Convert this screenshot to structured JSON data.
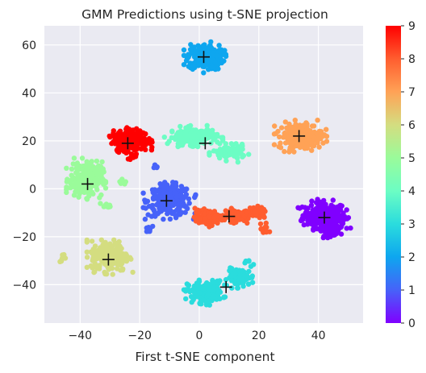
{
  "chart_data": {
    "type": "scatter",
    "title": "GMM Predictions using t-SNE projection",
    "xlabel": "First t-SNE component",
    "ylabel": "",
    "xlim": [
      -52,
      55
    ],
    "ylim": [
      -56,
      68
    ],
    "xticks": [
      -40,
      -20,
      0,
      20,
      40
    ],
    "yticks": [
      -40,
      -20,
      0,
      20,
      40,
      60
    ],
    "grid": true,
    "background": "#EAEAF2",
    "colormap": "rainbow",
    "colorbar": {
      "min": 0,
      "max": 9,
      "ticks": [
        0,
        1,
        2,
        3,
        4,
        5,
        6,
        7,
        8,
        9
      ]
    },
    "clusters": [
      {
        "label": 0,
        "color": "#8000ff",
        "blobs": [
          {
            "x": 42,
            "y": -11,
            "rx": 8,
            "ry": 6,
            "n": 220
          },
          {
            "x": 44,
            "y": -16,
            "rx": 5,
            "ry": 4,
            "n": 90
          }
        ]
      },
      {
        "label": 1,
        "color": "#4662f9",
        "blobs": [
          {
            "x": -10,
            "y": -5,
            "rx": 8,
            "ry": 7,
            "n": 260
          },
          {
            "x": -17,
            "y": -17,
            "rx": 1.5,
            "ry": 1.5,
            "n": 10
          },
          {
            "x": -15,
            "y": 9,
            "rx": 1.3,
            "ry": 1.3,
            "n": 6
          }
        ]
      },
      {
        "label": 2,
        "color": "#0ea6ef",
        "blobs": [
          {
            "x": 2,
            "y": 55,
            "rx": 6.5,
            "ry": 6,
            "n": 240
          }
        ]
      },
      {
        "label": 3,
        "color": "#2adcdd",
        "blobs": [
          {
            "x": 2,
            "y": -43,
            "rx": 6.5,
            "ry": 5,
            "n": 170
          },
          {
            "x": 14,
            "y": -37,
            "rx": 5,
            "ry": 4,
            "n": 80
          },
          {
            "x": 17,
            "y": -31,
            "rx": 1.5,
            "ry": 1.5,
            "n": 6
          }
        ]
      },
      {
        "label": 4,
        "color": "#6cfdc4",
        "blobs": [
          {
            "x": -2,
            "y": 22,
            "rx": 9,
            "ry": 4,
            "n": 170
          },
          {
            "x": 10,
            "y": 15,
            "rx": 6,
            "ry": 3.5,
            "n": 90
          }
        ]
      },
      {
        "label": 5,
        "color": "#9afb9a",
        "blobs": [
          {
            "x": -38,
            "y": 4,
            "rx": 6,
            "ry": 8,
            "n": 230
          },
          {
            "x": -31,
            "y": -7,
            "rx": 2,
            "ry": 1.2,
            "n": 8
          },
          {
            "x": -26,
            "y": 3,
            "rx": 1.4,
            "ry": 1.6,
            "n": 8
          }
        ]
      },
      {
        "label": 6,
        "color": "#d4dd80",
        "blobs": [
          {
            "x": -30,
            "y": -28,
            "rx": 7,
            "ry": 7,
            "n": 230
          },
          {
            "x": -45.5,
            "y": -29,
            "rx": 1.6,
            "ry": 2,
            "n": 12
          }
        ]
      },
      {
        "label": 7,
        "color": "#ffa256",
        "blobs": [
          {
            "x": 34,
            "y": 22,
            "rx": 8,
            "ry": 6,
            "n": 240
          }
        ]
      },
      {
        "label": 8,
        "color": "#ff5d2f",
        "blobs": [
          {
            "x": 3,
            "y": -12,
            "rx": 5,
            "ry": 3.5,
            "n": 110
          },
          {
            "x": 12,
            "y": -11,
            "rx": 4,
            "ry": 3,
            "n": 80
          },
          {
            "x": 19,
            "y": -10,
            "rx": 4,
            "ry": 2.5,
            "n": 60
          },
          {
            "x": 22,
            "y": -17,
            "rx": 1.5,
            "ry": 2.5,
            "n": 14
          }
        ]
      },
      {
        "label": 9,
        "color": "#ff0000",
        "blobs": [
          {
            "x": -23,
            "y": 20,
            "rx": 6.5,
            "ry": 5,
            "n": 240
          },
          {
            "x": -23,
            "y": 13,
            "rx": 1.5,
            "ry": 1.2,
            "n": 6
          }
        ]
      }
    ],
    "centers": [
      {
        "label": 0,
        "x": 42,
        "y": -12
      },
      {
        "label": 1,
        "x": -11,
        "y": -5
      },
      {
        "label": 2,
        "x": 1.5,
        "y": 55
      },
      {
        "label": 3,
        "x": 9,
        "y": -41
      },
      {
        "label": 4,
        "x": 2,
        "y": 19
      },
      {
        "label": 5,
        "x": -37.5,
        "y": 2
      },
      {
        "label": 6,
        "x": -30.5,
        "y": -29.5
      },
      {
        "label": 7,
        "x": 33.5,
        "y": 22
      },
      {
        "label": 8,
        "x": 10,
        "y": -11.5
      },
      {
        "label": 9,
        "x": -24,
        "y": 19
      }
    ]
  }
}
